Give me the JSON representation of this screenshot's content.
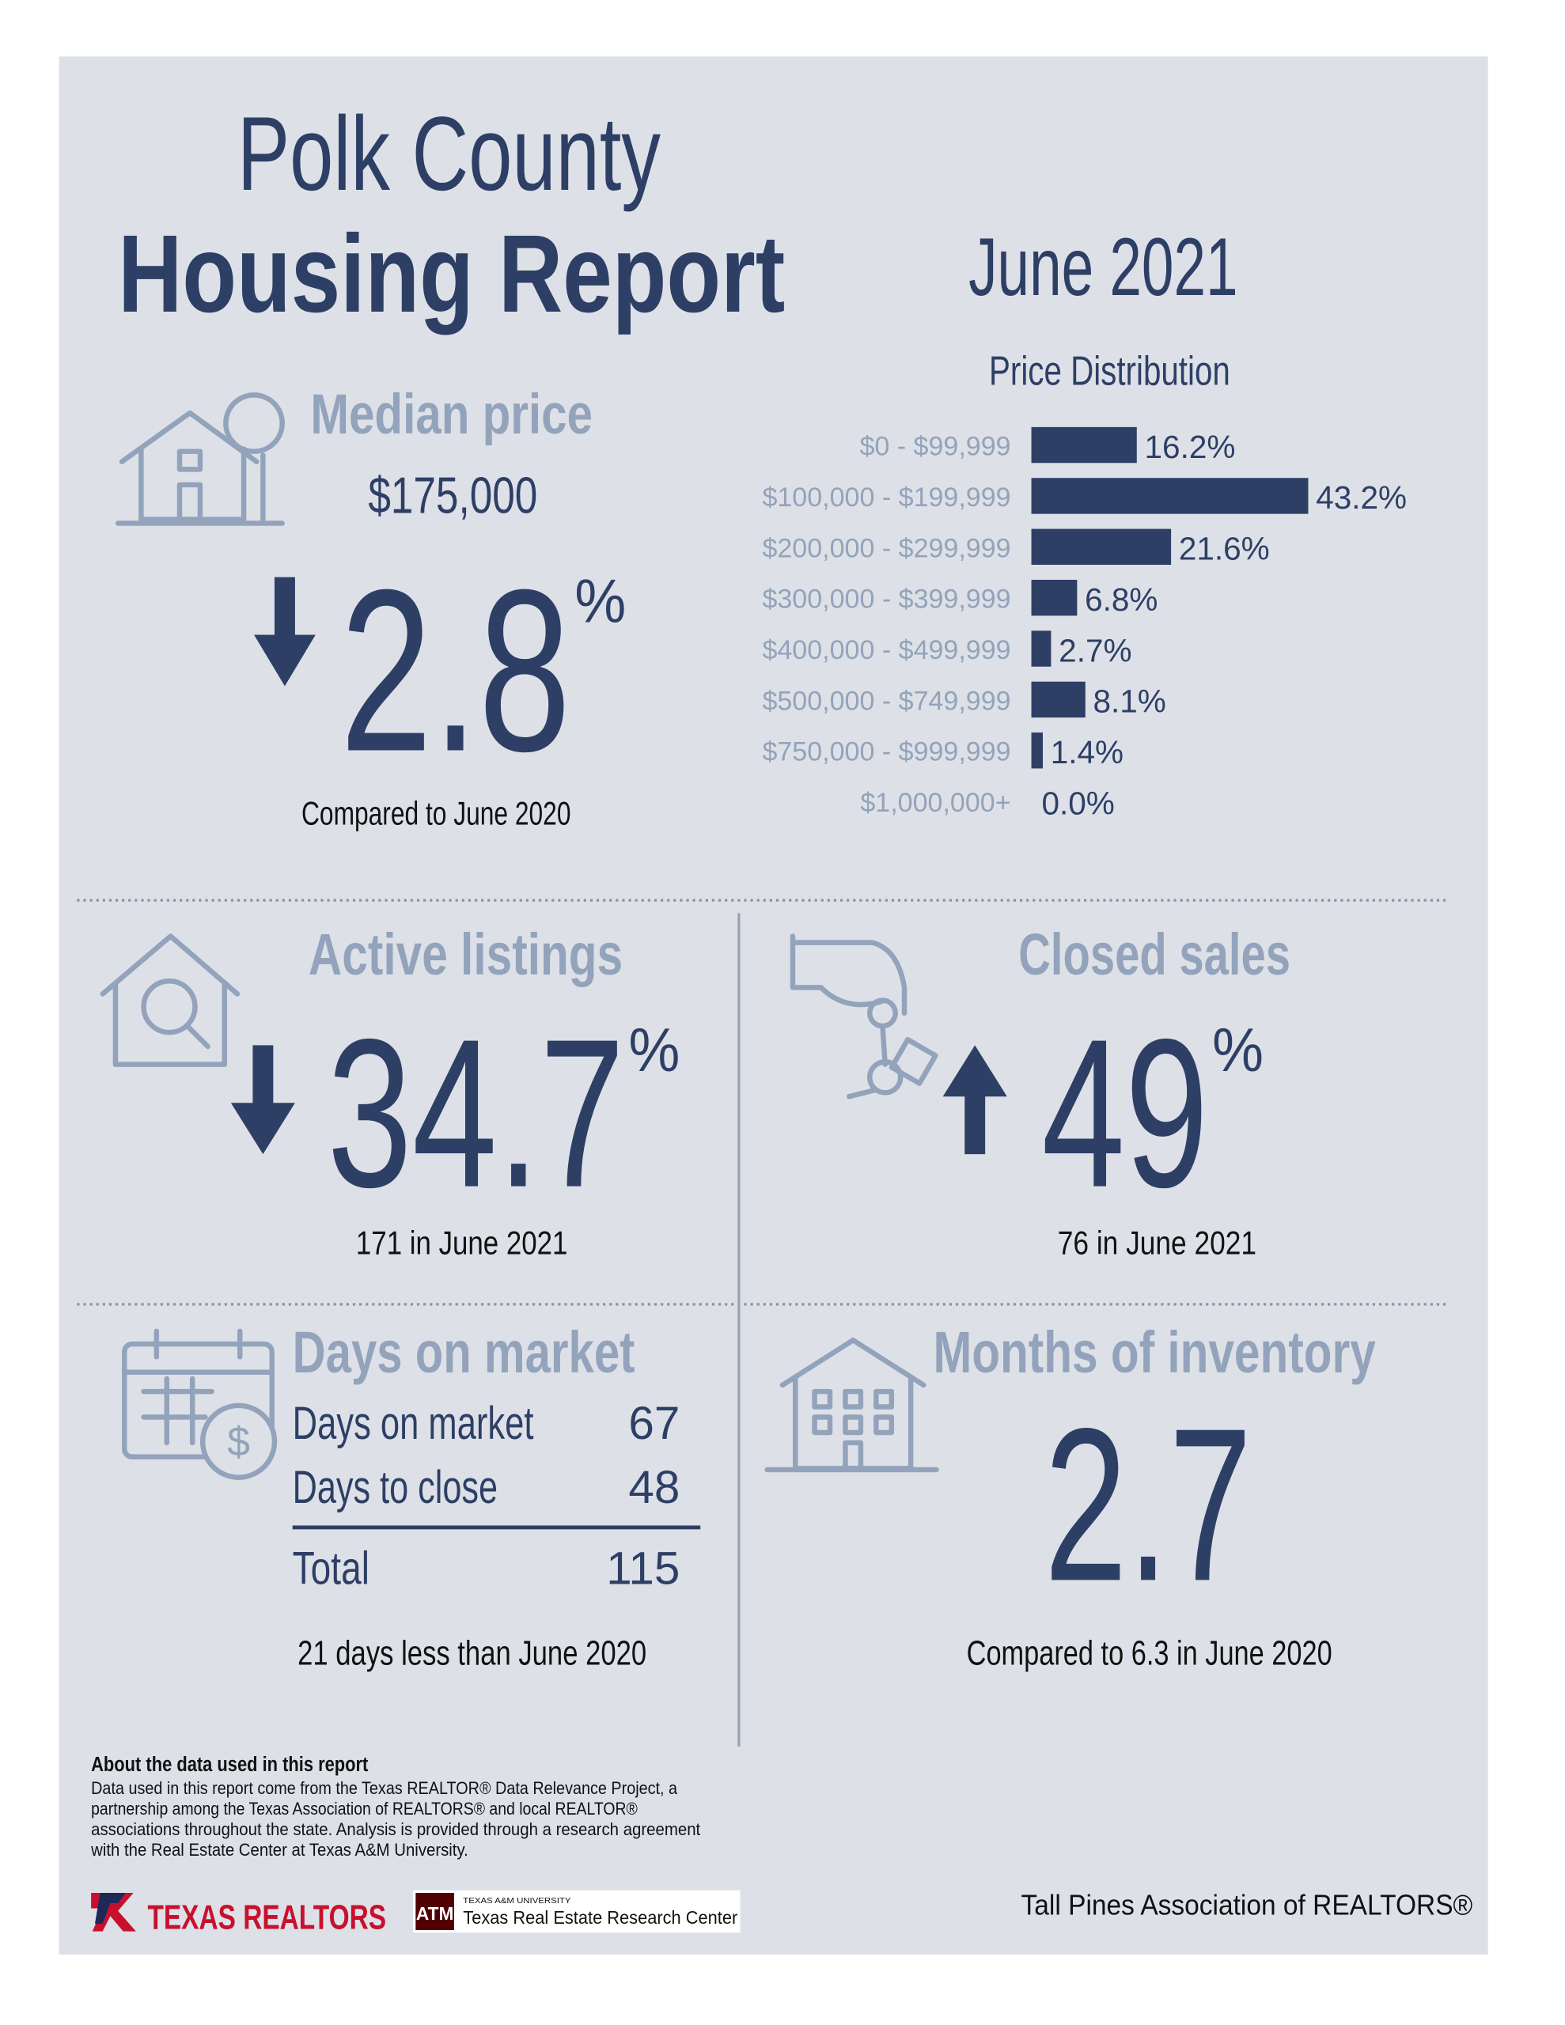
{
  "header": {
    "title_line1": "Polk County",
    "title_line2": "Housing Report",
    "period": "June 2021"
  },
  "median_price": {
    "title": "Median price",
    "value": "$175,000",
    "change": "2.8",
    "unit": "%",
    "note": "Compared to June 2020"
  },
  "chart_data": {
    "type": "bar",
    "orientation": "horizontal",
    "title": "Price Distribution",
    "categories": [
      "$0 - $99,999",
      "$100,000 - $199,999",
      "$200,000 - $299,999",
      "$300,000 - $399,999",
      "$400,000 - $499,999",
      "$500,000 - $749,999",
      "$750,000 - $999,999",
      "$1,000,000+"
    ],
    "values": [
      16.2,
      43.2,
      21.6,
      6.8,
      2.7,
      8.1,
      1.4,
      0.0
    ],
    "value_labels": [
      "16.2%",
      "43.2%",
      "21.6%",
      "6.8%",
      "2.7%",
      "8.1%",
      "1.4%",
      "0.0%"
    ],
    "color": "#2e3f66"
  },
  "active_listings": {
    "title": "Active listings",
    "change": "34.7",
    "unit": "%",
    "note": "171 in June 2021"
  },
  "closed_sales": {
    "title": "Closed sales",
    "change": "49",
    "unit": "%",
    "note": "76 in June 2021"
  },
  "days_on_market": {
    "title": "Days on market",
    "rows": [
      [
        "Days on market",
        "67"
      ],
      [
        "Days to close",
        "48"
      ]
    ],
    "total": [
      "Total",
      "115"
    ],
    "note": "21 days less than June 2020"
  },
  "months_inventory": {
    "title": "Months of inventory",
    "value": "2.7",
    "note": "Compared to 6.3 in June 2020"
  },
  "footer": {
    "about_title": "About the data used in this report",
    "about_lines": [
      "Data used in this report come from the Texas REALTOR® Data Relevance Project, a",
      "partnership among the Texas Association of REALTORS® and local REALTOR®",
      "associations throughout the state. Analysis is provided through a research agreement",
      "with the Real Estate Center at Texas A&M University."
    ],
    "logo_texas_realtors": "TEXAS REALTORS",
    "logo_tamu_small": "TEXAS A&M UNIVERSITY",
    "logo_tamu": "Texas Real Estate Research Center",
    "association": "Tall Pines Association of REALTORS®"
  }
}
